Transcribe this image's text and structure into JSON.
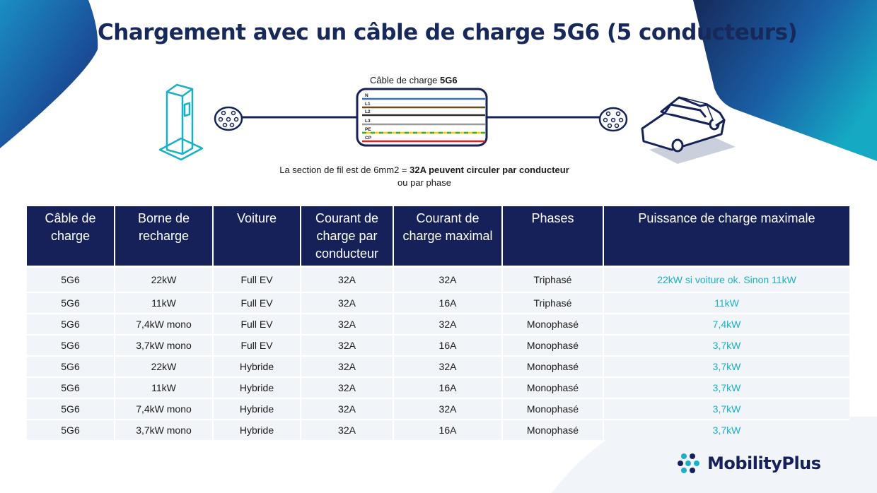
{
  "title": "Chargement avec un câble de charge 5G6 (5 conducteurs)",
  "diagram": {
    "cable_label_prefix": "Câble de charge ",
    "cable_label_bold": "5G6",
    "wires": [
      "N",
      "L1",
      "L2",
      "L3",
      "PE",
      "CP"
    ],
    "wire_colors": [
      "#3a6fc4",
      "#6b4a1e",
      "#2a2a2a",
      "#9a9a9a",
      "#7ab82e",
      "#e02020"
    ],
    "section_note_prefix": "La section de fil est de 6mm2 = ",
    "section_note_bold": "32A peuvent circuler par conducteur",
    "section_note_line2": "ou par phase"
  },
  "table": {
    "headers": [
      "Câble de charge",
      "Borne de recharge",
      "Voiture",
      "Courant de charge par conducteur",
      "Courant de charge maximal",
      "Phases",
      "Puissance de charge maximale"
    ],
    "rows": [
      [
        "5G6",
        "22kW",
        "Full EV",
        "32A",
        "32A",
        "Triphasé",
        "22kW si voiture ok. Sinon 11kW"
      ],
      [
        "5G6",
        "11kW",
        "Full EV",
        "32A",
        "16A",
        "Triphasé",
        "11kW"
      ],
      [
        "5G6",
        "7,4kW mono",
        "Full EV",
        "32A",
        "32A",
        "Monophasé",
        "7,4kW"
      ],
      [
        "5G6",
        "3,7kW mono",
        "Full EV",
        "32A",
        "16A",
        "Monophasé",
        "3,7kW"
      ],
      [
        "5G6",
        "22kW",
        "Hybride",
        "32A",
        "32A",
        "Monophasé",
        "3,7kW"
      ],
      [
        "5G6",
        "11kW",
        "Hybride",
        "32A",
        "16A",
        "Monophasé",
        "3,7kW"
      ],
      [
        "5G6",
        "7,4kW mono",
        "Hybride",
        "32A",
        "32A",
        "Monophasé",
        "3,7kW"
      ],
      [
        "5G6",
        "3,7kW mono",
        "Hybride",
        "32A",
        "16A",
        "Monophasé",
        "3,7kW"
      ]
    ]
  },
  "colors": {
    "navy": "#16215a",
    "accent_cyan": "#1ab0c8",
    "row_bg": "#f1f4f8"
  },
  "logo": {
    "text": "MobilityPlus"
  }
}
